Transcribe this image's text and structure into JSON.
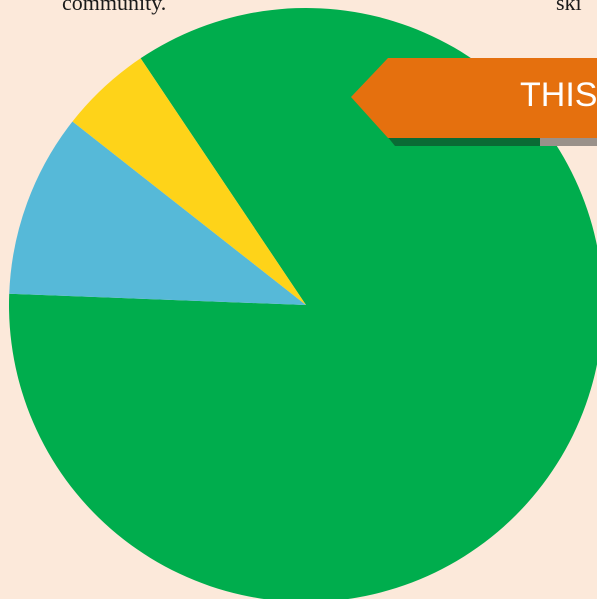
{
  "header": {
    "left_text": "community.",
    "right_text": "ski"
  },
  "banner": {
    "label": "THIS",
    "color": "#e5700e",
    "shadow_color": "#0a6b35"
  },
  "chart_data": {
    "type": "pie",
    "title": "",
    "slices": [
      {
        "value": 85,
        "color": "#00ad4d"
      },
      {
        "value": 10,
        "color": "#56b9d8"
      },
      {
        "value": 5,
        "color": "#fed319"
      }
    ]
  }
}
